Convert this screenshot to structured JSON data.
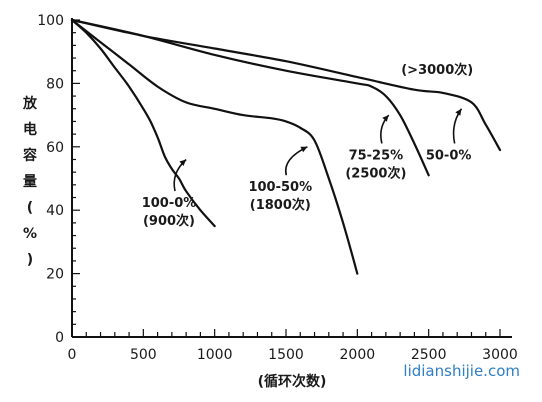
{
  "chart_data": {
    "type": "line",
    "title": "",
    "xlabel": "(循环次数)",
    "ylabel_chars": [
      "放",
      "电",
      "容",
      "量",
      "(",
      "%",
      ")"
    ],
    "xlim": [
      0,
      3000
    ],
    "ylim": [
      0,
      100
    ],
    "x_ticks": [
      0,
      500,
      1000,
      1500,
      2000,
      2500,
      3000
    ],
    "y_ticks": [
      0,
      20,
      40,
      60,
      80,
      100
    ],
    "grid": false,
    "series": [
      {
        "x": [
          0,
          100,
          200,
          300,
          400,
          500,
          550,
          600,
          650,
          700,
          750,
          800,
          900,
          1000
        ],
        "y": [
          100,
          96,
          91,
          85,
          79,
          72,
          68,
          63,
          57,
          53,
          50,
          46,
          40,
          35
        ]
      },
      {
        "x": [
          0,
          200,
          400,
          600,
          800,
          1000,
          1200,
          1400,
          1500,
          1600,
          1700,
          1800,
          1900,
          2000
        ],
        "y": [
          100,
          93,
          86,
          79,
          74,
          72,
          70,
          69,
          68,
          66,
          62,
          50,
          36,
          20
        ]
      },
      {
        "x": [
          0,
          500,
          1000,
          1500,
          2000,
          2100,
          2200,
          2300,
          2400,
          2500
        ],
        "y": [
          100,
          95,
          89,
          84,
          80,
          79,
          76,
          70,
          61,
          51
        ]
      },
      {
        "x": [
          0,
          500,
          1000,
          1500,
          2000,
          2400,
          2600,
          2800,
          2900,
          3000
        ],
        "y": [
          100,
          95,
          91,
          87,
          82,
          78,
          77,
          74,
          67,
          59
        ]
      }
    ],
    "annotations": [
      {
        "lines": [
          "100-0%",
          "(900次)"
        ],
        "x": 680,
        "y": 41,
        "arrow_to": [
          800,
          56
        ]
      },
      {
        "lines": [
          "100-50%",
          "(1800次)"
        ],
        "x": 1460,
        "y": 46,
        "arrow_to": [
          1650,
          60
        ]
      },
      {
        "lines": [
          "75-25%",
          "(2500次)"
        ],
        "x": 2130,
        "y": 56,
        "arrow_to": [
          2220,
          70
        ]
      },
      {
        "lines": [
          "50-0%"
        ],
        "x": 2640,
        "y": 56,
        "arrow_to": [
          2730,
          72
        ]
      },
      {
        "lines": [
          "(>3000次)"
        ],
        "x": 2560,
        "y": 83
      }
    ]
  },
  "watermark": "lidianshijie.com"
}
